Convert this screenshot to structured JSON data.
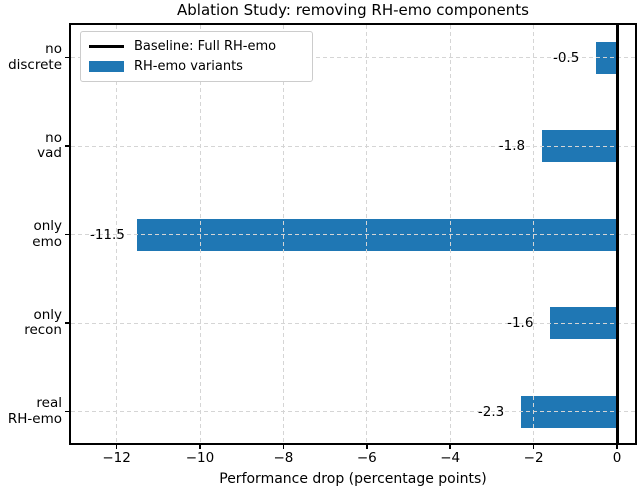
{
  "chart_data": {
    "type": "bar",
    "orientation": "horizontal",
    "title": "Ablation Study: removing RH-emo components",
    "xlabel": "Performance drop (percentage points)",
    "ylabel": "",
    "categories": [
      "no discrete",
      "no vad",
      "only emo",
      "only recon",
      "real RH-emo"
    ],
    "category_lines": [
      [
        "no",
        "discrete"
      ],
      [
        "no",
        "vad"
      ],
      [
        "only",
        "emo"
      ],
      [
        "only",
        "recon"
      ],
      [
        "real",
        "RH-emo"
      ]
    ],
    "values": [
      -0.5,
      -1.8,
      -11.5,
      -1.6,
      -2.3
    ],
    "value_labels": [
      "-0.5",
      "-1.8",
      "-11.5",
      "-1.6",
      "-2.3"
    ],
    "x_ticks": [
      -12,
      -10,
      -8,
      -6,
      -4,
      -2,
      0
    ],
    "x_tick_labels": [
      "−12",
      "−10",
      "−8",
      "−6",
      "−4",
      "−2",
      "0"
    ],
    "xlim": [
      -13.1,
      0.48
    ],
    "baseline_x": 0,
    "grid": "dashed",
    "legend": {
      "position": "upper left",
      "entries": [
        {
          "label": "Baseline: Full RH-emo",
          "marker": "line",
          "color": "#000000"
        },
        {
          "label": "RH-emo variants",
          "marker": "patch",
          "color": "#1f77b4"
        }
      ]
    },
    "colors": {
      "bar": "#1f77b4",
      "baseline": "#000000",
      "grid": "#d5d5d5",
      "spine": "#000000",
      "text": "#000000",
      "background": "#ffffff"
    }
  }
}
